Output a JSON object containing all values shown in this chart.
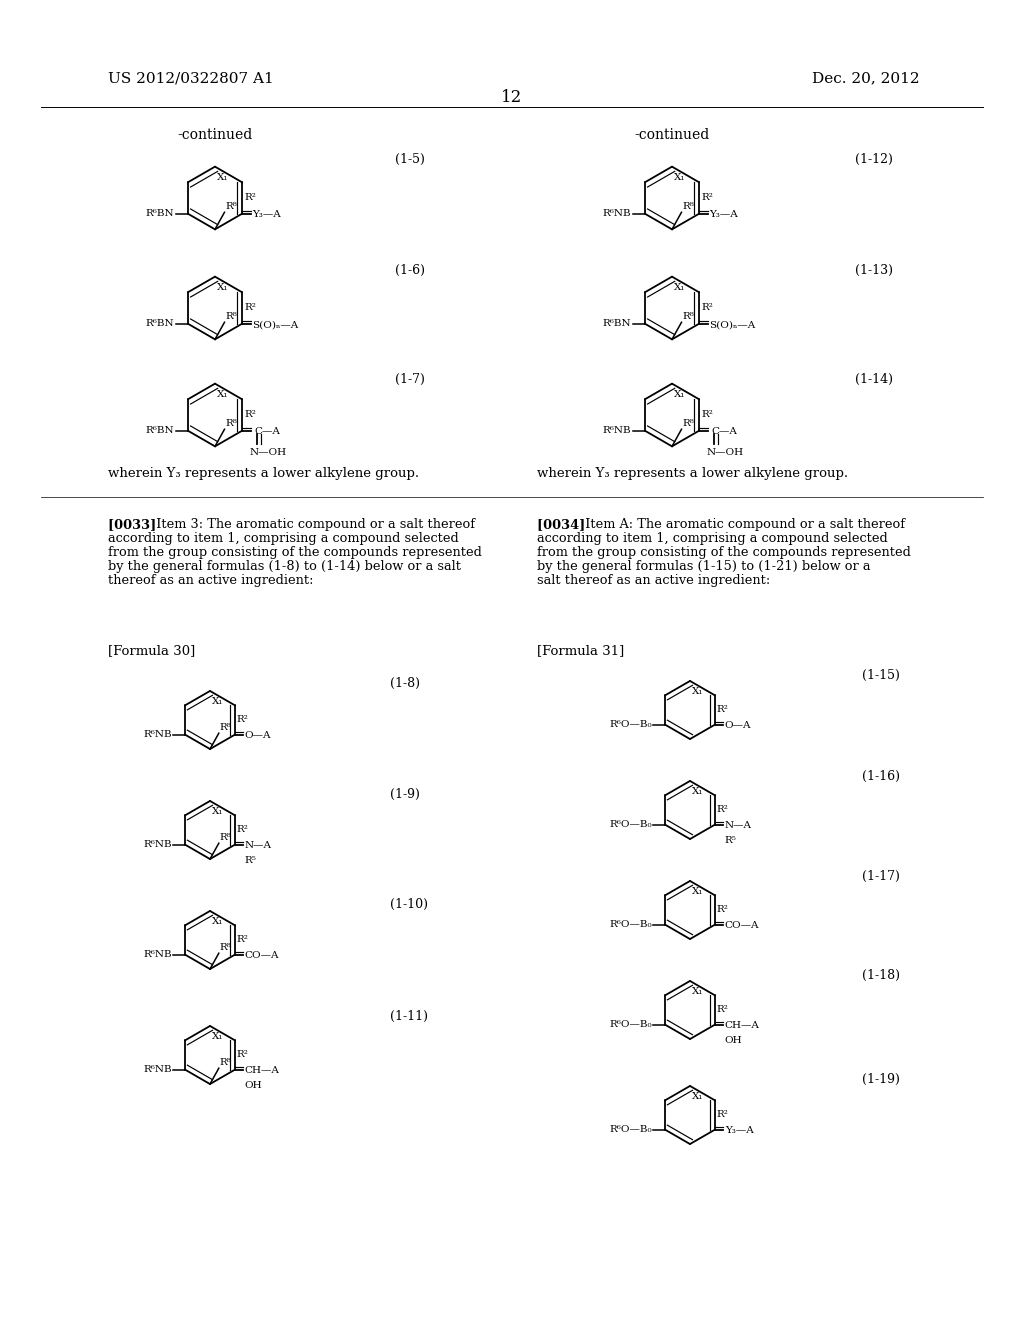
{
  "bg_color": "#ffffff",
  "text_color": "#000000",
  "header_left": "US 2012/0322807 A1",
  "header_right": "Dec. 20, 2012",
  "page_number": "12",
  "continued_left": "-continued",
  "continued_right": "-continued",
  "formula_label_left": "[Formula 30]",
  "formula_label_right": "[Formula 31]",
  "bottom_note_left": "wherein Y₃ represents a lower alkylene group.",
  "bottom_note_right": "wherein Y₃ represents a lower alkylene group.",
  "para_left": "[0033]   Item 3: The aromatic compound or a salt thereof according to item 1, comprising a compound selected from the group consisting of the compounds represented by the general formulas (1-8) to (1-14) below or a salt thereof as an active ingredient:",
  "para_right": "[0034]   Item A: The aromatic compound or a salt thereof according to item 1, comprising a compound selected from the group consisting of the compounds represented by the general formulas (1-15) to (1-21) below or a salt thereof as an active ingredient:"
}
